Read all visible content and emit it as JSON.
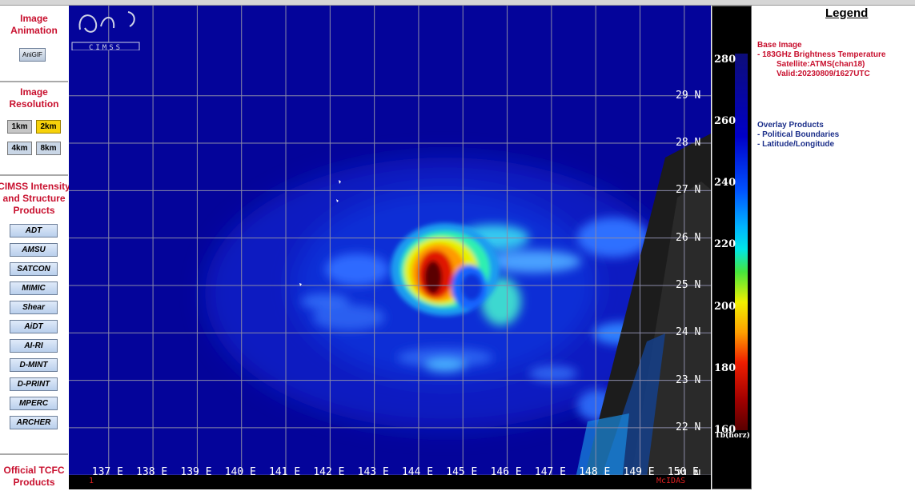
{
  "sidebar": {
    "animation": {
      "title_line1": "Image",
      "title_line2": "Animation",
      "button": "AniGIF"
    },
    "resolution": {
      "title_line1": "Image",
      "title_line2": "Resolution",
      "buttons": [
        "1km",
        "2km",
        "4km",
        "8km"
      ],
      "active": "2km"
    },
    "products": {
      "title_line1": "CIMSS Intensity",
      "title_line2": "and Structure",
      "title_line3": "Products",
      "buttons": [
        "ADT",
        "AMSU",
        "SATCON",
        "MIMIC",
        "Shear",
        "AiDT",
        "AI-RI",
        "D-MINT",
        "D-PRINT",
        "MPERC",
        "ARCHER"
      ]
    },
    "official": {
      "title_line1": "Official TCFC",
      "title_line2": "Products"
    }
  },
  "map": {
    "lon_labels": [
      "137E",
      "138E",
      "139E",
      "140E",
      "141E",
      "142E",
      "143E",
      "144E",
      "145E",
      "146E",
      "147E",
      "148E",
      "149E",
      "150E"
    ],
    "lat_labels": [
      "29N",
      "28N",
      "27N",
      "26N",
      "25N",
      "24N",
      "23N",
      "22N",
      "21N"
    ],
    "lat_range": [
      20.7,
      30.9
    ],
    "lon_range": [
      136.1,
      150.6
    ],
    "footer_left": "1",
    "footer_right": "McIDAS",
    "logo_text": "CIMSS",
    "colors": {
      "background": "#04049a",
      "gridline": "#8a8aa8",
      "storm_core": "#1a0000"
    }
  },
  "colorbar": {
    "ticks": [
      280,
      260,
      240,
      220,
      200,
      180,
      160
    ],
    "range": [
      160,
      282
    ],
    "unit": "Tb(horz)"
  },
  "legend": {
    "title": "Legend",
    "base_heading": "Base Image",
    "base_line1": "-  183GHz Brightness Temperature",
    "base_line2": "Satellite:ATMS(chan18)",
    "base_line3": "Valid:20230809/1627UTC",
    "overlay_heading": "Overlay Products",
    "overlay_items": [
      "-  Political Boundaries",
      "-  Latitude/Longitude"
    ]
  }
}
